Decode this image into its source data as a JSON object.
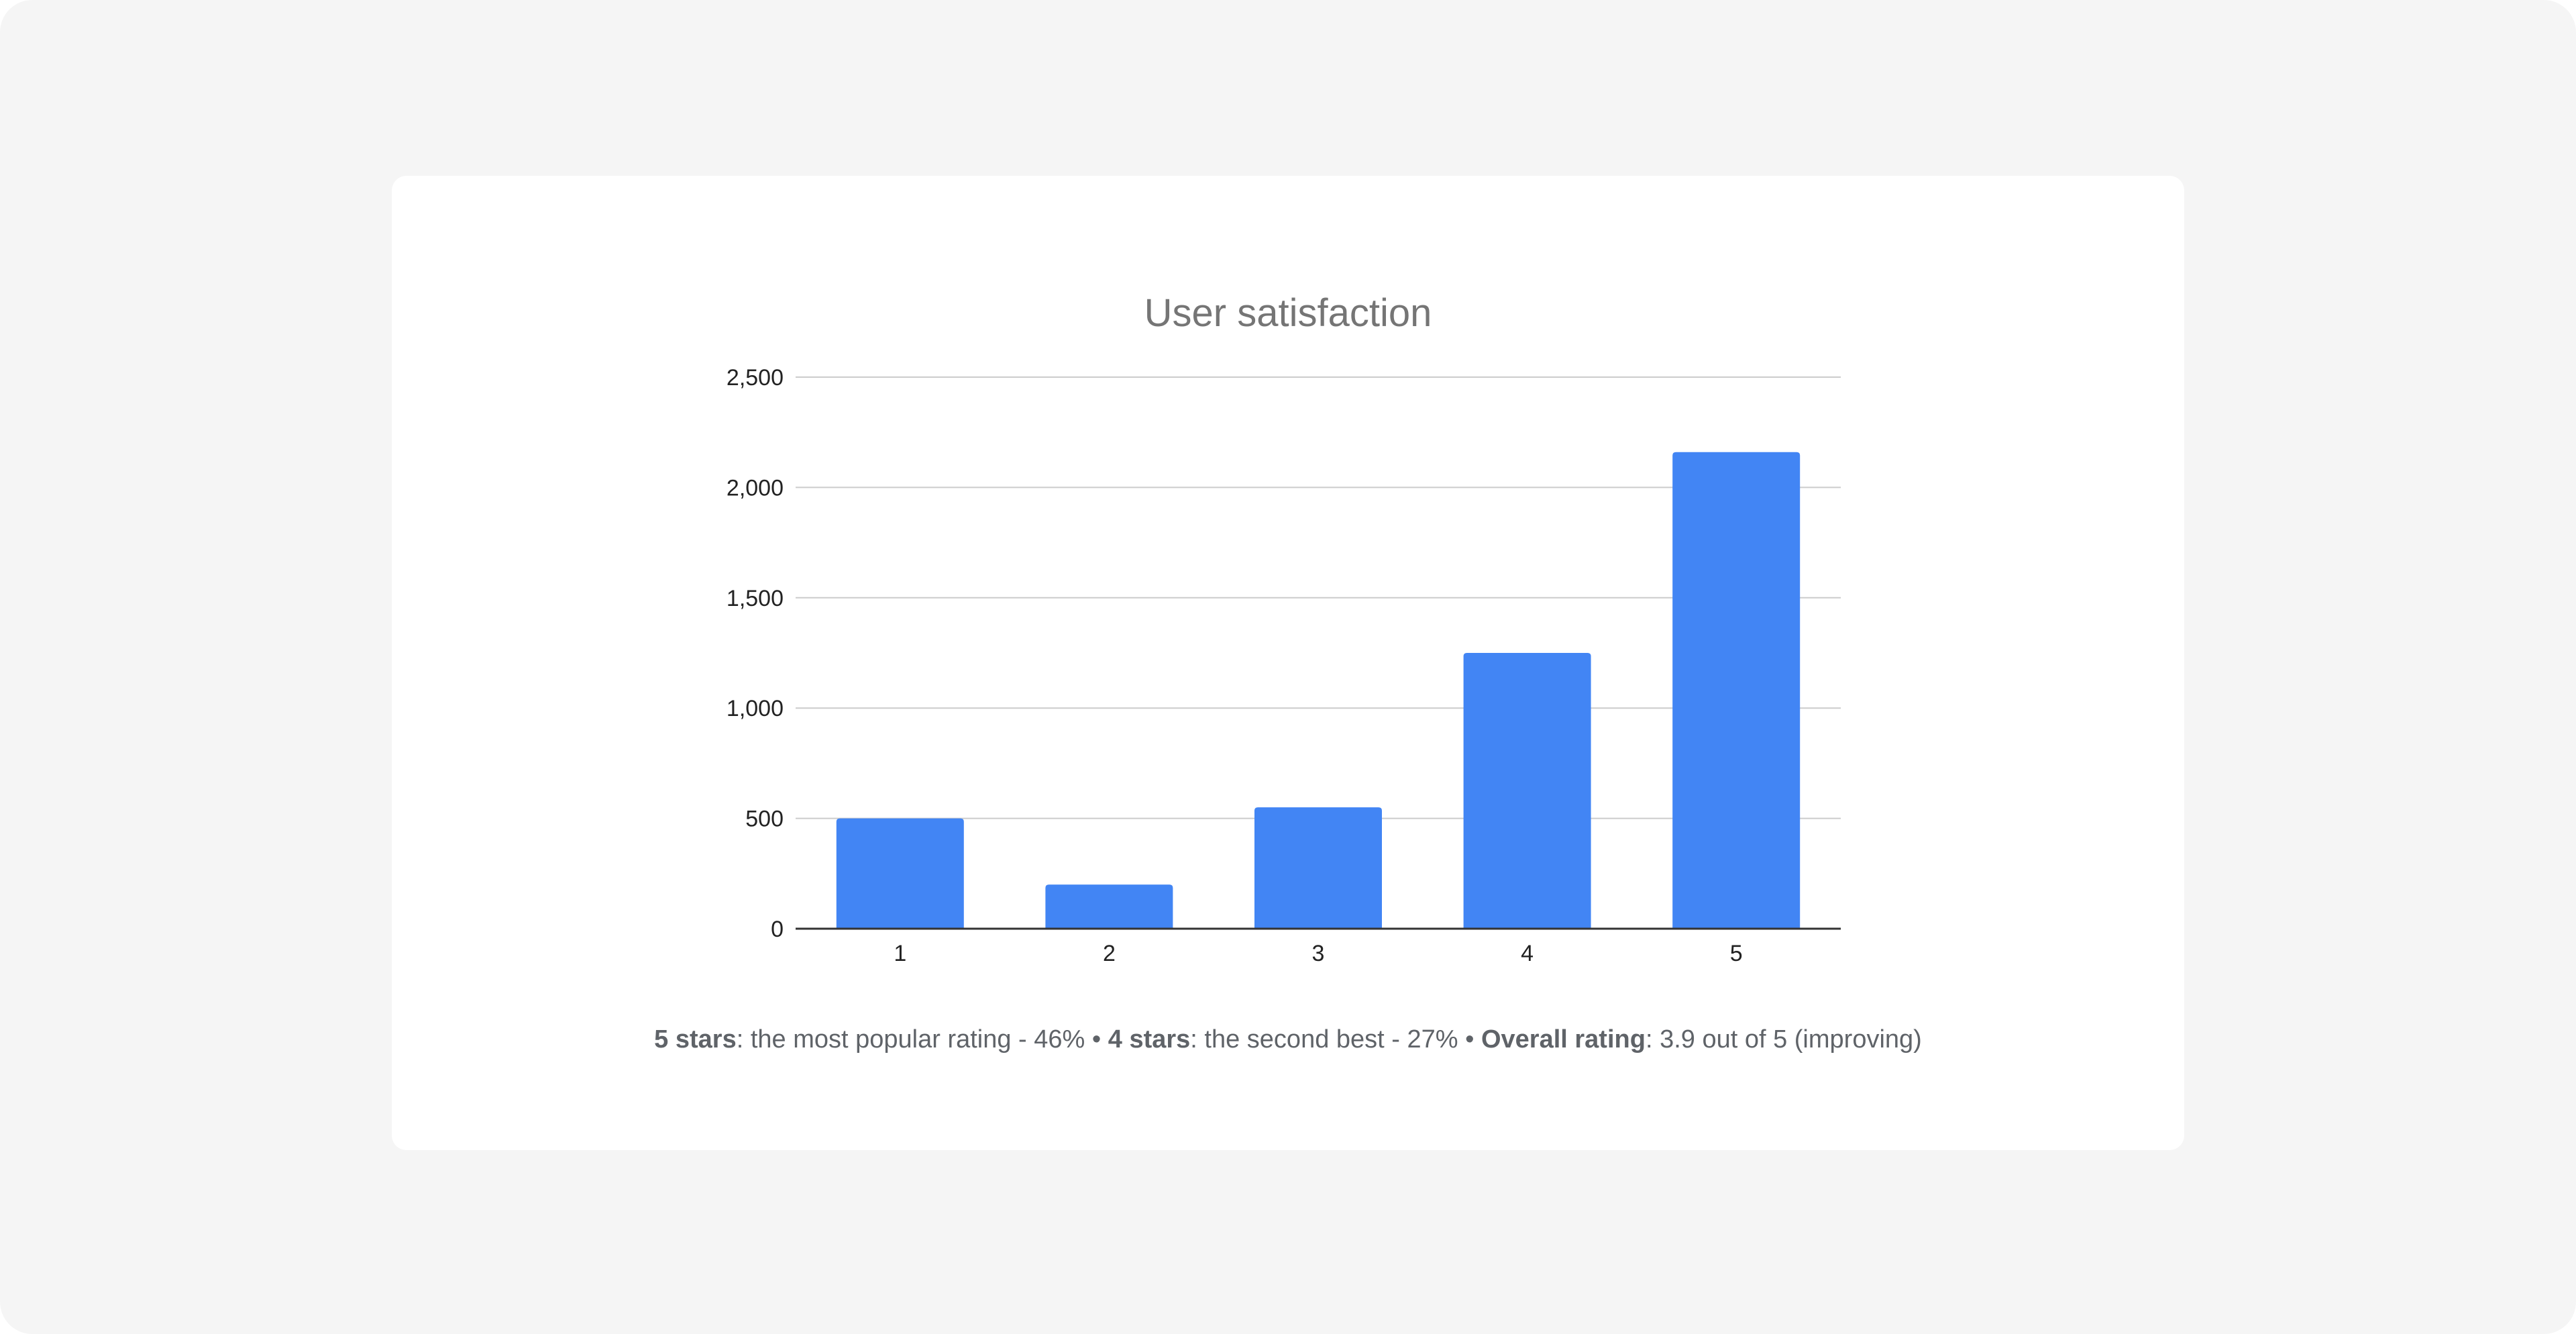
{
  "colors": {
    "page_background": "#f5f5f5",
    "card_background": "#ffffff",
    "bar": "#4285f4",
    "gridline": "#cccccc",
    "baseline": "#333333",
    "title": "#757575",
    "caption": "#5f6368"
  },
  "chart_data": {
    "type": "bar",
    "title": "User satisfaction",
    "xlabel": "",
    "ylabel": "",
    "categories": [
      "1",
      "2",
      "3",
      "4",
      "5"
    ],
    "values": [
      500,
      200,
      550,
      1250,
      2160
    ],
    "ylim": [
      0,
      2500
    ],
    "yticks": [
      0,
      500,
      1000,
      1500,
      2000,
      2500
    ],
    "ytick_labels": [
      "0",
      "500",
      "1,000",
      "1,500",
      "2,000",
      "2,500"
    ],
    "grid": true,
    "legend": "none"
  },
  "caption": {
    "part1_label": "5 stars",
    "part1_text": ": the most popular rating - 46%",
    "sep1": " • ",
    "part2_label": "4 stars",
    "part2_text": ": the second best - 27%",
    "sep2": " • ",
    "part3_label": "Overall rating",
    "part3_text": ": 3.9 out of 5 (improving)"
  }
}
